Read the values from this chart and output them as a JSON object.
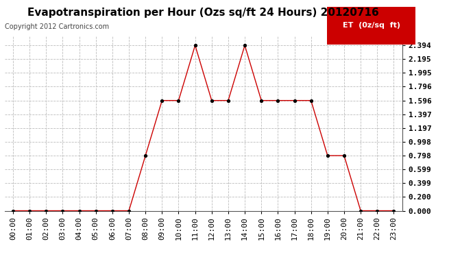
{
  "title": "Evapotranspiration per Hour (Ozs sq/ft 24 Hours) 20120716",
  "copyright": "Copyright 2012 Cartronics.com",
  "legend_label": "ET  (0z/sq  ft)",
  "x_labels": [
    "00:00",
    "01:00",
    "02:00",
    "03:00",
    "04:00",
    "05:00",
    "06:00",
    "07:00",
    "08:00",
    "09:00",
    "10:00",
    "11:00",
    "12:00",
    "13:00",
    "14:00",
    "15:00",
    "16:00",
    "17:00",
    "18:00",
    "19:00",
    "20:00",
    "21:00",
    "22:00",
    "23:00"
  ],
  "hours": [
    0,
    1,
    2,
    3,
    4,
    5,
    6,
    7,
    8,
    9,
    10,
    11,
    12,
    13,
    14,
    15,
    16,
    17,
    18,
    19,
    20,
    21,
    22,
    23
  ],
  "values": [
    0.0,
    0.0,
    0.0,
    0.0,
    0.0,
    0.0,
    0.0,
    0.0,
    0.798,
    1.596,
    1.596,
    2.394,
    1.596,
    1.596,
    2.394,
    1.596,
    1.596,
    1.596,
    1.596,
    0.798,
    0.798,
    0.0,
    0.0,
    0.0
  ],
  "y_ticks": [
    0.0,
    0.2,
    0.399,
    0.599,
    0.798,
    0.998,
    1.197,
    1.397,
    1.596,
    1.796,
    1.995,
    2.195,
    2.394
  ],
  "ylim": [
    0.0,
    2.53
  ],
  "xlim": [
    -0.5,
    23.5
  ],
  "line_color": "#cc0000",
  "marker_color": "#000000",
  "bg_color": "#ffffff",
  "grid_color": "#bbbbbb",
  "legend_bg": "#cc0000",
  "legend_text_color": "#ffffff",
  "title_fontsize": 11,
  "copyright_fontsize": 7,
  "tick_fontsize": 8,
  "legend_fontsize": 8
}
